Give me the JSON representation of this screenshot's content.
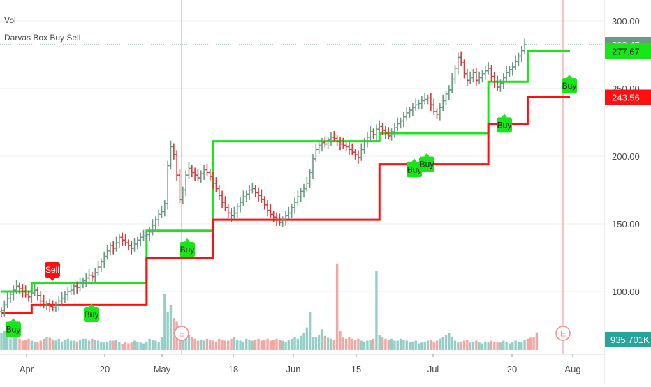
{
  "legend": {
    "volume": "Vol",
    "indicator": "Darvas Box Buy Sell"
  },
  "colors": {
    "up": "#6a9a84",
    "down": "#d83a3a",
    "box_top": "#19e619",
    "box_bottom": "#ff0f0f",
    "vol_up": "#93cfc7",
    "vol_down": "#f3a7a3",
    "earnings": "#f28c8c",
    "label_buy": "#19e619",
    "label_sell": "#ff0f0f",
    "price_axis_last": "#6a9a84",
    "volume_badge": "#26a69a"
  },
  "chart_data": {
    "type": "ohlc",
    "y_axis": {
      "ticks": [
        "300.00",
        "250.00",
        "200.00",
        "150.00",
        "100.00"
      ],
      "ylim": [
        63,
        307
      ]
    },
    "x_axis": {
      "ticks": [
        "Apr",
        "20",
        "May",
        "18",
        "Jun",
        "15",
        "Jul",
        "20",
        "Aug"
      ]
    },
    "price_badges": [
      {
        "label": "282.47",
        "value": 282.47,
        "color": "price_axis_last"
      },
      {
        "label": "277.67",
        "value": 277.67,
        "color": "box_top"
      },
      {
        "label": "243.56",
        "value": 243.56,
        "color": "box_bottom"
      }
    ],
    "volume_badge": "935.701K",
    "last_close": 282.47,
    "earnings_markers": [
      "E",
      "E"
    ],
    "signals": [
      {
        "text": "Buy",
        "type": "buy",
        "price": 72
      },
      {
        "text": "Sell",
        "type": "sell",
        "price": 116
      },
      {
        "text": "Buy",
        "type": "buy",
        "price": 83
      },
      {
        "text": "Buy",
        "type": "buy",
        "price": 131
      },
      {
        "text": "Buy",
        "type": "buy",
        "price": 190
      },
      {
        "text": "Buy",
        "type": "buy",
        "price": 194
      },
      {
        "text": "Buy",
        "type": "buy",
        "price": 223
      },
      {
        "text": "Buy",
        "type": "buy",
        "price": 252
      }
    ],
    "box_top_steps": [
      {
        "value": 100,
        "from": 0,
        "to": 10
      },
      {
        "value": 106,
        "from": 10,
        "to": 48
      },
      {
        "value": 145,
        "from": 48,
        "to": 70
      },
      {
        "value": 211,
        "from": 70,
        "to": 125
      },
      {
        "value": 217,
        "from": 125,
        "to": 161
      },
      {
        "value": 255,
        "from": 161,
        "to": 174
      },
      {
        "value": 277.67,
        "from": 174,
        "to": 188
      }
    ],
    "box_bottom_steps": [
      {
        "value": 84,
        "from": 0,
        "to": 10
      },
      {
        "value": 90,
        "from": 10,
        "to": 48
      },
      {
        "value": 125,
        "from": 48,
        "to": 70
      },
      {
        "value": 153,
        "from": 70,
        "to": 125
      },
      {
        "value": 194,
        "from": 125,
        "to": 161
      },
      {
        "value": 224,
        "from": 161,
        "to": 174
      },
      {
        "value": 243.56,
        "from": 174,
        "to": 188
      }
    ],
    "closes": [
      86,
      90,
      95,
      98,
      101,
      104,
      102,
      100,
      98,
      96,
      99,
      101,
      97,
      93,
      90,
      91,
      89,
      88,
      90,
      93,
      95,
      98,
      100,
      101,
      104,
      103,
      106,
      108,
      110,
      112,
      111,
      114,
      118,
      122,
      126,
      130,
      134,
      132,
      136,
      140,
      138,
      136,
      134,
      132,
      135,
      138,
      140,
      141,
      142,
      144,
      149,
      153,
      157,
      159,
      165,
      193,
      207,
      201,
      186,
      168,
      175,
      186,
      191,
      188,
      186,
      184,
      187,
      190,
      188,
      185,
      180,
      176,
      171,
      166,
      162,
      158,
      156,
      158,
      163,
      166,
      170,
      172,
      175,
      176,
      173,
      171,
      168,
      164,
      160,
      157,
      155,
      153,
      151,
      153,
      156,
      158,
      162,
      166,
      170,
      174,
      176,
      180,
      188,
      198,
      205,
      208,
      210,
      209,
      212,
      214,
      213,
      211,
      209,
      208,
      207,
      205,
      203,
      201,
      199,
      205,
      211,
      214,
      218,
      216,
      220,
      222,
      219,
      217,
      215,
      218,
      221,
      224,
      226,
      229,
      232,
      234,
      236,
      238,
      239,
      241,
      242,
      243,
      238,
      233,
      231,
      236,
      241,
      246,
      249,
      257,
      265,
      273,
      269,
      261,
      256,
      258,
      262,
      256,
      258,
      261,
      263,
      265,
      259,
      255,
      251,
      254,
      258,
      262,
      264,
      266,
      270,
      274,
      278,
      282.47
    ],
    "volumes": [
      0.9,
      1.0,
      0.7,
      0.6,
      0.65,
      0.8,
      0.6,
      0.5,
      0.55,
      0.6,
      0.5,
      0.45,
      0.4,
      0.5,
      0.6,
      0.7,
      0.65,
      0.55,
      0.5,
      0.6,
      0.45,
      0.55,
      0.6,
      0.5,
      0.5,
      0.45,
      0.55,
      0.6,
      0.6,
      0.5,
      0.6,
      0.55,
      0.5,
      0.45,
      0.4,
      0.45,
      0.5,
      0.5,
      0.55,
      0.45,
      0.3,
      0.4,
      0.35,
      0.4,
      0.5,
      0.45,
      0.4,
      0.35,
      0.45,
      0.6,
      0.55,
      0.5,
      0.4,
      0.7,
      3.0,
      2.0,
      2.4,
      1.7,
      1.5,
      1.2,
      1.0,
      0.9,
      0.8,
      0.7,
      0.6,
      0.5,
      0.55,
      0.5,
      0.6,
      0.55,
      0.5,
      0.45,
      0.6,
      0.55,
      0.5,
      0.5,
      0.6,
      0.7,
      0.55,
      0.5,
      0.45,
      0.6,
      0.55,
      0.5,
      0.55,
      0.6,
      0.5,
      0.55,
      0.6,
      0.5,
      0.55,
      0.6,
      0.55,
      0.5,
      0.45,
      0.55,
      0.6,
      0.7,
      0.6,
      0.75,
      0.9,
      1.2,
      2.0,
      0.7,
      0.7,
      0.8,
      1.1,
      0.75,
      0.65,
      0.6,
      0.55,
      4.6,
      1.0,
      0.7,
      0.6,
      0.7,
      0.6,
      0.55,
      0.6,
      0.5,
      0.45,
      0.5,
      0.55,
      0.6,
      4.2,
      0.8,
      0.7,
      0.6,
      0.55,
      0.6,
      0.5,
      0.5,
      0.6,
      0.55,
      0.5,
      0.4,
      0.45,
      0.5,
      0.35,
      0.4,
      0.45,
      0.5,
      0.55,
      0.45,
      0.5,
      0.6,
      0.7,
      0.8,
      0.9,
      0.7,
      0.5,
      0.4,
      0.45,
      0.5,
      0.55,
      0.4,
      0.45,
      0.5,
      0.4,
      0.35,
      0.45,
      0.4,
      0.5,
      0.45,
      0.4,
      0.4,
      0.5,
      0.45,
      0.35,
      0.4,
      0.5,
      0.45,
      0.4,
      0.55,
      0.6,
      0.65,
      0.7,
      0.94
    ]
  }
}
